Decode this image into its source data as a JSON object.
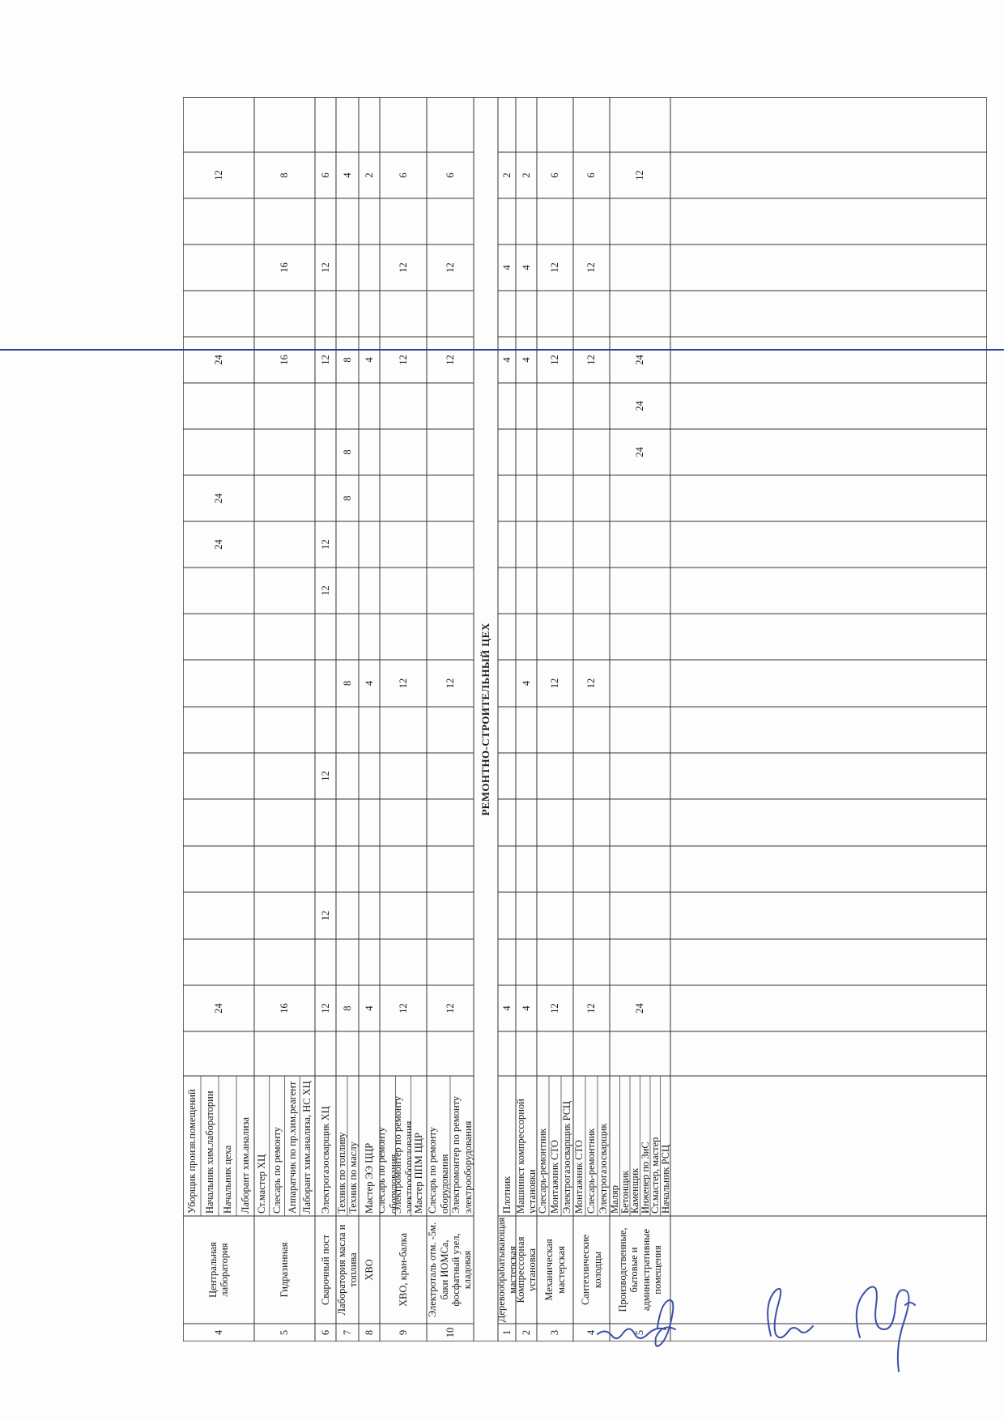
{
  "section_title": "РЕМОНТНО-СТРОИТЕЛЬНЫЙ ЦЕХ",
  "rows": [
    {
      "no": "4",
      "place": "Центральная лаборатория",
      "staff": [
        "Уборщик произв.помещений",
        "Начальник хим.лаборатории",
        "Начальник цеха",
        "Лаборант хим.анализа"
      ],
      "c1": "24",
      "c2": "",
      "c3": "",
      "c4": "",
      "c5": "",
      "c6": "",
      "c7": "",
      "c8": "24",
      "c9": "24",
      "c10": "",
      "c11": "",
      "c12": "24",
      "c13": "",
      "c14": "",
      "c15": "",
      "c16": "12"
    },
    {
      "no": "5",
      "place": "Гидразинная",
      "staff": [
        "Ст.мастер ХЦ",
        "Слесарь по ремонту",
        "Аппаратчик по пр.хим.реагент",
        "Лаборант хим.анализа, НС ХЦ"
      ],
      "c1": "16",
      "c2": "",
      "c3": "",
      "c4": "",
      "c5": "",
      "c6": "",
      "c7": "",
      "c8": "",
      "c9": "",
      "c10": "",
      "c11": "",
      "c12": "16",
      "c13": "",
      "c14": "16",
      "c15": "",
      "c16": "8"
    },
    {
      "no": "6",
      "place": "Сварочный пост",
      "staff": [
        "Электрогазосварщик ХЦ"
      ],
      "c1": "12",
      "c2": "12",
      "c3": "",
      "c4": "12",
      "c5": "",
      "c6": "",
      "c7": "12",
      "c8": "12",
      "c9": "",
      "c10": "",
      "c11": "",
      "c12": "12",
      "c13": "",
      "c14": "12",
      "c15": "",
      "c16": "6"
    },
    {
      "no": "7",
      "place": "Лаборатория масла и топлива",
      "staff": [
        "Техник по топливу",
        "Техник по маслу"
      ],
      "c1": "8",
      "c2": "",
      "c3": "",
      "c4": "",
      "c5": "",
      "c6": "8",
      "c7": "",
      "c8": "",
      "c9": "8",
      "c10": "8",
      "c11": "",
      "c12": "8",
      "c13": "",
      "c14": "",
      "c15": "",
      "c16": "4"
    },
    {
      "no": "8",
      "place": "ХВО",
      "staff": [
        "Мастер ЭЭ ЦЦР"
      ],
      "c1": "4",
      "c2": "",
      "c3": "",
      "c4": "",
      "c5": "",
      "c6": "4",
      "c7": "",
      "c8": "",
      "c9": "",
      "c10": "",
      "c11": "",
      "c12": "4",
      "c13": "",
      "c14": "",
      "c15": "",
      "c16": "2"
    },
    {
      "no": "9",
      "place": "ХВО, кран-балка",
      "staff": [
        "Слесарь по ремонту оборудования",
        "Электромонтер по ремонту электрооборудования",
        "Мастер ППМ ЦЦР"
      ],
      "c1": "12",
      "c2": "",
      "c3": "",
      "c4": "",
      "c5": "",
      "c6": "12",
      "c7": "",
      "c8": "",
      "c9": "",
      "c10": "",
      "c11": "",
      "c12": "12",
      "c13": "",
      "c14": "12",
      "c15": "",
      "c16": "6"
    },
    {
      "no": "10",
      "place": "Электроталь отм. -5м. баки ИОМСа, фосфатный узел, кладовая",
      "staff": [
        "Слесарь по ремонту оборудования",
        "Электромонтер по ремонту электрооборудования"
      ],
      "c1": "12",
      "c2": "",
      "c3": "",
      "c4": "",
      "c5": "",
      "c6": "12",
      "c7": "",
      "c8": "",
      "c9": "",
      "c10": "",
      "c11": "",
      "c12": "12",
      "c13": "",
      "c14": "12",
      "c15": "",
      "c16": "6"
    },
    {
      "no": "1",
      "place": "Деревообрабатывающая мастерская",
      "staff": [
        "Плотник"
      ],
      "c1": "4",
      "c2": "",
      "c3": "",
      "c4": "",
      "c5": "",
      "c6": "",
      "c7": "",
      "c8": "",
      "c9": "",
      "c10": "",
      "c11": "",
      "c12": "4",
      "c13": "",
      "c14": "4",
      "c15": "",
      "c16": "2"
    },
    {
      "no": "2",
      "place": "Компрессорная установка",
      "staff": [
        "Машинист компрессорной установки"
      ],
      "c1": "4",
      "c2": "",
      "c3": "",
      "c4": "",
      "c5": "",
      "c6": "4",
      "c7": "",
      "c8": "",
      "c9": "",
      "c10": "",
      "c11": "",
      "c12": "4",
      "c13": "",
      "c14": "4",
      "c15": "",
      "c16": "2"
    },
    {
      "no": "3",
      "place": "Механическая мастерская",
      "staff": [
        "Слесарь-ремонтник",
        "Монтажник СТО",
        "Электрогазосварщик РСЦ"
      ],
      "c1": "12",
      "c2": "",
      "c3": "",
      "c4": "",
      "c5": "",
      "c6": "12",
      "c7": "",
      "c8": "",
      "c9": "",
      "c10": "",
      "c11": "",
      "c12": "12",
      "c13": "",
      "c14": "12",
      "c15": "",
      "c16": "6"
    },
    {
      "no": "4",
      "place": "Сантехнические колодцы",
      "staff": [
        "Монтажник СТО",
        "Слесарь-ремонтник",
        "Электрогазосварщик"
      ],
      "c1": "12",
      "c2": "",
      "c3": "",
      "c4": "",
      "c5": "",
      "c6": "12",
      "c7": "",
      "c8": "",
      "c9": "",
      "c10": "",
      "c11": "",
      "c12": "12",
      "c13": "",
      "c14": "12",
      "c15": "",
      "c16": "6"
    },
    {
      "no": "5",
      "place": "Производственные, бытовые и административные помещения",
      "staff": [
        "Маляр",
        "Бетонщик",
        "Каменщик",
        "Инженер по ЗиС",
        "Ст.мастер, мастер",
        "Начальник РСЦ"
      ],
      "c1": "24",
      "c2": "",
      "c3": "",
      "c4": "",
      "c5": "",
      "c6": "",
      "c7": "",
      "c8": "",
      "c9": "",
      "c10": "24",
      "c11": "24",
      "c12": "24",
      "c13": "",
      "c14": "",
      "c15": "",
      "c16": "12"
    }
  ]
}
